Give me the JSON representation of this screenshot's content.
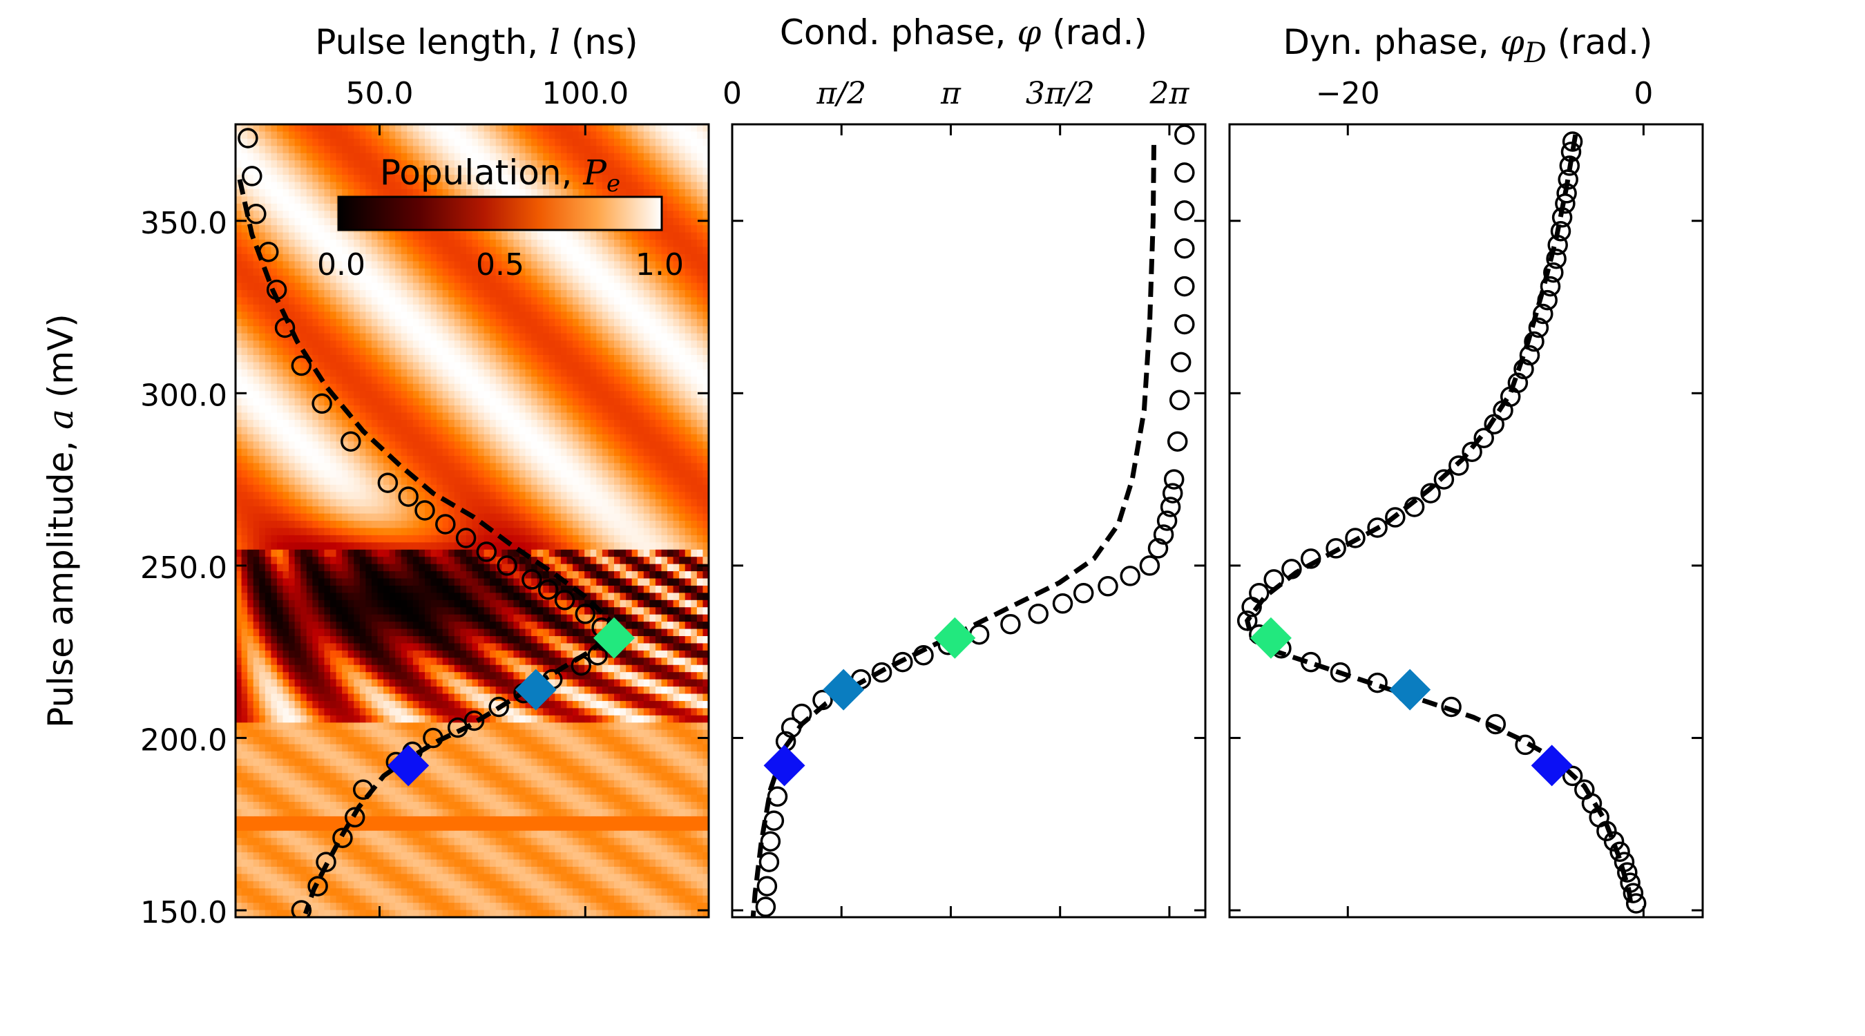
{
  "chart_data": [
    {
      "type": "heatmap",
      "panel": "a",
      "xlabel_prefix": "Pulse length, ",
      "xlabel_symbol": "l",
      "xlabel_unit": " (ns)",
      "ylabel_prefix": "Pulse amplitude, ",
      "ylabel_symbol": "a",
      "ylabel_unit": " (mV)",
      "xlim": [
        15,
        130
      ],
      "ylim": [
        148,
        378
      ],
      "xtick_labels": [
        "50.0",
        "100.0"
      ],
      "xtick_values": [
        50,
        100
      ],
      "ytick_labels": [
        "150.0",
        "200.0",
        "250.0",
        "300.0",
        "350.0"
      ],
      "ytick_values": [
        150,
        200,
        250,
        300,
        350
      ],
      "colorbar": {
        "label_prefix": "Population, ",
        "label_symbol": "P",
        "label_sub": "e",
        "tick_labels": [
          "0.0",
          "0.5",
          "1.0"
        ],
        "tick_values": [
          0,
          0.5,
          1
        ],
        "colormap": "gist_heat",
        "range": [
          0,
          1
        ]
      },
      "scatter": {
        "marker": "open-circle",
        "points": [
          [
            18,
            374
          ],
          [
            19,
            363
          ],
          [
            20,
            352
          ],
          [
            23,
            341
          ],
          [
            25,
            330
          ],
          [
            27,
            319
          ],
          [
            31,
            308
          ],
          [
            36,
            297
          ],
          [
            43,
            286
          ],
          [
            52,
            274
          ],
          [
            57,
            270
          ],
          [
            61,
            266
          ],
          [
            66,
            262
          ],
          [
            71,
            258
          ],
          [
            76,
            254
          ],
          [
            81,
            250
          ],
          [
            87,
            246
          ],
          [
            91,
            243
          ],
          [
            95,
            240
          ],
          [
            100,
            236
          ],
          [
            104,
            232
          ],
          [
            105,
            228
          ],
          [
            103,
            224
          ],
          [
            99,
            221
          ],
          [
            92,
            217
          ],
          [
            85,
            213
          ],
          [
            79,
            209
          ],
          [
            73,
            205
          ],
          [
            69,
            203
          ],
          [
            63,
            200
          ],
          [
            58,
            196
          ],
          [
            54,
            193
          ],
          [
            46,
            185
          ],
          [
            44,
            177
          ],
          [
            41,
            171
          ],
          [
            37,
            164
          ],
          [
            35,
            157
          ],
          [
            31,
            150
          ]
        ]
      },
      "fit_line": [
        [
          16,
          362
        ],
        [
          19,
          346
        ],
        [
          24,
          330
        ],
        [
          30,
          315
        ],
        [
          37,
          302
        ],
        [
          46,
          289
        ],
        [
          55,
          279
        ],
        [
          63,
          271
        ],
        [
          73,
          264
        ],
        [
          82,
          256
        ],
        [
          92,
          248
        ],
        [
          100,
          241
        ],
        [
          106,
          234
        ],
        [
          105,
          229
        ],
        [
          101,
          225
        ],
        [
          94,
          220
        ],
        [
          86,
          214
        ],
        [
          78,
          208
        ],
        [
          71,
          203
        ],
        [
          64,
          199
        ],
        [
          57,
          194
        ],
        [
          51,
          189
        ],
        [
          45,
          180
        ],
        [
          41,
          172
        ],
        [
          37,
          163
        ],
        [
          34,
          156
        ],
        [
          32,
          149
        ]
      ],
      "markers": [
        {
          "x": 57,
          "y": 192,
          "color": "#0b10f5",
          "name": "blue"
        },
        {
          "x": 88,
          "y": 214,
          "color": "#0a7dc0",
          "name": "teal"
        },
        {
          "x": 107,
          "y": 229,
          "color": "#22e87e",
          "name": "green"
        }
      ]
    },
    {
      "type": "scatter",
      "panel": "b",
      "xlabel_prefix": "Cond. phase, ",
      "xlabel_symbol": "φ",
      "xlabel_unit": " (rad.)",
      "xlim": [
        0,
        6.8
      ],
      "ylim": [
        148,
        378
      ],
      "xtick_labels": [
        "0",
        "π/2",
        "π",
        "3π/2",
        "2π"
      ],
      "xtick_values": [
        0,
        1.5708,
        3.1416,
        4.7124,
        6.2832
      ],
      "ytick_values": [
        150,
        200,
        250,
        300,
        350
      ],
      "scatter": {
        "marker": "open-circle",
        "points": [
          [
            6.5,
            375
          ],
          [
            6.5,
            364
          ],
          [
            6.5,
            353
          ],
          [
            6.5,
            342
          ],
          [
            6.5,
            331
          ],
          [
            6.5,
            320
          ],
          [
            6.45,
            309
          ],
          [
            6.43,
            298
          ],
          [
            6.4,
            286
          ],
          [
            6.35,
            275
          ],
          [
            6.33,
            271
          ],
          [
            6.3,
            267
          ],
          [
            6.25,
            263
          ],
          [
            6.2,
            259
          ],
          [
            6.12,
            255
          ],
          [
            6.0,
            250
          ],
          [
            5.72,
            247
          ],
          [
            5.4,
            244
          ],
          [
            5.05,
            242
          ],
          [
            4.75,
            239
          ],
          [
            4.4,
            236
          ],
          [
            4.0,
            233
          ],
          [
            3.55,
            230
          ],
          [
            3.1,
            227
          ],
          [
            2.75,
            224
          ],
          [
            2.45,
            222
          ],
          [
            2.15,
            219
          ],
          [
            1.85,
            217
          ],
          [
            1.6,
            214
          ],
          [
            1.3,
            211
          ],
          [
            1.0,
            207
          ],
          [
            0.85,
            203
          ],
          [
            0.77,
            199
          ],
          [
            0.7,
            192
          ],
          [
            0.65,
            183
          ],
          [
            0.6,
            176
          ],
          [
            0.55,
            170
          ],
          [
            0.53,
            164
          ],
          [
            0.5,
            157
          ],
          [
            0.48,
            151
          ]
        ]
      },
      "fit_line": [
        [
          6.06,
          372
        ],
        [
          6.05,
          350
        ],
        [
          6.0,
          320
        ],
        [
          5.92,
          295
        ],
        [
          5.75,
          275
        ],
        [
          5.55,
          262
        ],
        [
          5.2,
          252
        ],
        [
          4.7,
          245
        ],
        [
          4.2,
          240
        ],
        [
          3.7,
          235
        ],
        [
          3.2,
          230
        ],
        [
          2.7,
          225
        ],
        [
          2.2,
          220
        ],
        [
          1.75,
          215
        ],
        [
          1.35,
          210
        ],
        [
          1.0,
          204
        ],
        [
          0.75,
          197
        ],
        [
          0.55,
          185
        ],
        [
          0.42,
          170
        ],
        [
          0.33,
          155
        ],
        [
          0.3,
          148
        ]
      ],
      "markers": [
        {
          "x": 0.75,
          "y": 192,
          "color": "#0b10f5",
          "name": "blue"
        },
        {
          "x": 1.6,
          "y": 214,
          "color": "#0a7dc0",
          "name": "teal"
        },
        {
          "x": 3.2,
          "y": 229,
          "color": "#22e87e",
          "name": "green"
        }
      ]
    },
    {
      "type": "scatter",
      "panel": "c",
      "xlabel_prefix": "Dyn. phase, ",
      "xlabel_symbol": "φ",
      "xlabel_sub": "D",
      "xlabel_unit": " (rad.)",
      "xlim": [
        -28,
        4
      ],
      "ylim": [
        148,
        378
      ],
      "xtick_labels": [
        "−20",
        "0"
      ],
      "xtick_values": [
        -20,
        0
      ],
      "ytick_values": [
        150,
        200,
        250,
        300,
        350
      ],
      "scatter": {
        "marker": "open-circle",
        "points": [
          [
            -4.8,
            373
          ],
          [
            -4.9,
            370
          ],
          [
            -5.0,
            366
          ],
          [
            -5.1,
            362
          ],
          [
            -5.2,
            358
          ],
          [
            -5.3,
            355
          ],
          [
            -5.5,
            351
          ],
          [
            -5.6,
            347
          ],
          [
            -5.8,
            343
          ],
          [
            -5.9,
            339
          ],
          [
            -6.1,
            335
          ],
          [
            -6.3,
            331
          ],
          [
            -6.5,
            327
          ],
          [
            -6.8,
            323
          ],
          [
            -7.1,
            319
          ],
          [
            -7.4,
            315
          ],
          [
            -7.7,
            311
          ],
          [
            -8.1,
            307
          ],
          [
            -8.5,
            303
          ],
          [
            -9.0,
            299
          ],
          [
            -9.5,
            295
          ],
          [
            -10.1,
            291
          ],
          [
            -10.8,
            287
          ],
          [
            -11.6,
            283
          ],
          [
            -12.5,
            279
          ],
          [
            -13.5,
            275
          ],
          [
            -14.4,
            271
          ],
          [
            -15.5,
            267
          ],
          [
            -16.8,
            264
          ],
          [
            -18.0,
            261
          ],
          [
            -19.5,
            258
          ],
          [
            -20.8,
            255
          ],
          [
            -22.5,
            252
          ],
          [
            -23.8,
            249
          ],
          [
            -25.0,
            246
          ],
          [
            -26.0,
            242
          ],
          [
            -26.5,
            238
          ],
          [
            -26.8,
            234
          ],
          [
            -26.0,
            230
          ],
          [
            -24.5,
            226
          ],
          [
            -22.5,
            222
          ],
          [
            -20.5,
            219
          ],
          [
            -18.0,
            216
          ],
          [
            -16.0,
            213
          ],
          [
            -13.0,
            209
          ],
          [
            -10.0,
            204
          ],
          [
            -8.0,
            198
          ],
          [
            -6.5,
            192
          ],
          [
            -4.8,
            189
          ],
          [
            -4.0,
            185
          ],
          [
            -3.5,
            181
          ],
          [
            -3.0,
            177
          ],
          [
            -2.5,
            173
          ],
          [
            -2.0,
            170
          ],
          [
            -1.6,
            167
          ],
          [
            -1.3,
            164
          ],
          [
            -1.1,
            161
          ],
          [
            -0.9,
            158
          ],
          [
            -0.7,
            155
          ],
          [
            -0.5,
            152
          ]
        ]
      },
      "fit_line": [
        [
          -4.6,
          375
        ],
        [
          -5.2,
          360
        ],
        [
          -5.9,
          345
        ],
        [
          -6.8,
          330
        ],
        [
          -7.8,
          315
        ],
        [
          -9.0,
          300
        ],
        [
          -10.5,
          290
        ],
        [
          -12.2,
          281
        ],
        [
          -14.5,
          272
        ],
        [
          -17.5,
          262
        ],
        [
          -20.5,
          255
        ],
        [
          -23.5,
          248
        ],
        [
          -25.6,
          241
        ],
        [
          -26.8,
          234
        ],
        [
          -26.5,
          229
        ],
        [
          -24.8,
          225
        ],
        [
          -22.0,
          221
        ],
        [
          -18.5,
          216
        ],
        [
          -15.0,
          211
        ],
        [
          -11.5,
          206
        ],
        [
          -8.5,
          200
        ],
        [
          -6.0,
          194
        ],
        [
          -4.0,
          186
        ],
        [
          -2.6,
          176
        ],
        [
          -1.7,
          166
        ],
        [
          -1.0,
          156
        ],
        [
          -0.8,
          150
        ]
      ],
      "markers": [
        {
          "x": -6.2,
          "y": 192,
          "color": "#0b10f5",
          "name": "blue"
        },
        {
          "x": -15.8,
          "y": 214,
          "color": "#0a7dc0",
          "name": "teal"
        },
        {
          "x": -25.2,
          "y": 229,
          "color": "#22e87e",
          "name": "green"
        }
      ]
    }
  ]
}
